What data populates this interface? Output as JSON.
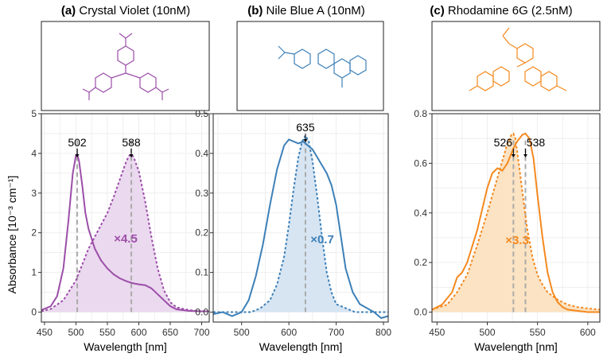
{
  "ylabel": "Absorbance [10⁻³ cm⁻¹]",
  "chart_data": [
    {
      "type": "line",
      "panel": "a",
      "title_bold": "(a)",
      "title_rest": "Crystal Violet (10nM)",
      "xlabel": "Wavelength [nm]",
      "xlim": [
        445,
        712
      ],
      "ylim": [
        -0.25,
        5
      ],
      "xticks": [
        "450",
        "500",
        "550",
        "600",
        "650",
        "700"
      ],
      "yticks": [
        "0",
        "1",
        "2",
        "3",
        "4",
        "5"
      ],
      "grid": true,
      "color": "#9b4ea8",
      "fill": "#ebd9ef",
      "peaks": [
        {
          "x": 502,
          "label": "502"
        },
        {
          "x": 588,
          "label": "588"
        }
      ],
      "multiplier": "×4.5",
      "series": [
        {
          "style": "solid",
          "x": [
            445,
            460,
            470,
            480,
            488,
            495,
            500,
            502,
            505,
            510,
            515,
            520,
            530,
            540,
            550,
            560,
            570,
            580,
            590,
            600,
            610,
            620,
            630,
            640,
            650,
            660,
            680,
            700,
            712
          ],
          "y": [
            0.05,
            0.15,
            0.4,
            1.1,
            2.3,
            3.5,
            3.95,
            3.98,
            3.8,
            3.2,
            2.5,
            2.1,
            1.6,
            1.3,
            1.1,
            0.95,
            0.85,
            0.78,
            0.73,
            0.7,
            0.68,
            0.6,
            0.45,
            0.3,
            0.15,
            0.07,
            0.03,
            0.02,
            0.02
          ]
        },
        {
          "style": "dashed",
          "x": [
            445,
            460,
            480,
            500,
            510,
            520,
            530,
            540,
            550,
            560,
            570,
            580,
            585,
            588,
            592,
            600,
            610,
            620,
            630,
            640,
            650,
            660,
            680,
            700,
            712
          ],
          "y": [
            0.02,
            0.08,
            0.3,
            0.8,
            1.2,
            1.6,
            1.9,
            2.2,
            2.5,
            2.9,
            3.35,
            3.8,
            3.95,
            3.98,
            3.9,
            3.55,
            2.8,
            1.9,
            1.1,
            0.55,
            0.25,
            0.12,
            0.05,
            0.02,
            0.02
          ]
        }
      ]
    },
    {
      "type": "line",
      "panel": "b",
      "title_bold": "(b)",
      "title_rest": "Nile Blue A (10nM)",
      "xlabel": "Wavelength [nm]",
      "xlim": [
        440,
        810
      ],
      "ylim": [
        -0.025,
        0.5
      ],
      "xticks": [
        "500",
        "600",
        "700",
        "800"
      ],
      "yticks": [
        "0.0",
        "0.1",
        "0.2",
        "0.3",
        "0.4",
        "0.5"
      ],
      "grid": true,
      "color": "#3d80b8",
      "fill": "#d7e5f3",
      "peaks": [
        {
          "x": 635,
          "label": "635"
        }
      ],
      "multiplier": "×0.7",
      "series": [
        {
          "style": "solid",
          "x": [
            440,
            460,
            480,
            500,
            515,
            530,
            545,
            560,
            575,
            590,
            600,
            610,
            620,
            630,
            640,
            650,
            660,
            670,
            680,
            690,
            700,
            710,
            720,
            735,
            750,
            765,
            780,
            795,
            810
          ],
          "y": [
            -0.005,
            0.0,
            -0.01,
            0.0,
            0.03,
            0.09,
            0.17,
            0.27,
            0.36,
            0.42,
            0.435,
            0.43,
            0.425,
            0.43,
            0.42,
            0.41,
            0.39,
            0.37,
            0.35,
            0.32,
            0.27,
            0.19,
            0.11,
            0.05,
            0.02,
            0.01,
            0.0,
            -0.015,
            -0.01
          ]
        },
        {
          "style": "dashed",
          "x": [
            440,
            480,
            520,
            540,
            560,
            575,
            590,
            600,
            610,
            620,
            628,
            635,
            642,
            650,
            660,
            670,
            680,
            690,
            700,
            720,
            740,
            760,
            780,
            810
          ],
          "y": [
            0.0,
            0.0,
            0.0,
            0.01,
            0.03,
            0.07,
            0.14,
            0.22,
            0.31,
            0.39,
            0.43,
            0.445,
            0.43,
            0.38,
            0.29,
            0.19,
            0.1,
            0.05,
            0.02,
            0.01,
            0.0,
            0.0,
            0.0,
            0.0
          ]
        }
      ]
    },
    {
      "type": "line",
      "panel": "c",
      "title_bold": "(c)",
      "title_rest": "Rhodamine 6G (2.5nM)",
      "xlabel": "Wavelength [nm]",
      "xlim": [
        445,
        612
      ],
      "ylim": [
        -0.04,
        0.8
      ],
      "xticks": [
        "450",
        "500",
        "550",
        "600"
      ],
      "yticks": [
        "0.0",
        "0.2",
        "0.4",
        "0.6",
        "0.8"
      ],
      "grid": true,
      "color": "#f4891f",
      "fill": "#fbe3c3",
      "peaks": [
        {
          "x": 526,
          "label": "526"
        },
        {
          "x": 538,
          "label": "538"
        }
      ],
      "multiplier": "×3.3",
      "series": [
        {
          "style": "solid",
          "x": [
            445,
            455,
            465,
            470,
            475,
            480,
            490,
            500,
            505,
            510,
            515,
            520,
            526,
            530,
            535,
            538,
            542,
            546,
            550,
            555,
            560,
            565,
            570,
            575,
            580,
            590,
            600,
            612
          ],
          "y": [
            0.01,
            0.03,
            0.08,
            0.14,
            0.16,
            0.2,
            0.33,
            0.5,
            0.56,
            0.58,
            0.57,
            0.6,
            0.66,
            0.69,
            0.715,
            0.72,
            0.7,
            0.62,
            0.47,
            0.3,
            0.16,
            0.08,
            0.04,
            0.02,
            0.01,
            0.005,
            0.0,
            0.0
          ]
        },
        {
          "style": "dashed",
          "x": [
            445,
            460,
            470,
            480,
            490,
            500,
            505,
            510,
            515,
            520,
            524,
            526,
            528,
            532,
            536,
            540,
            545,
            550,
            555,
            560,
            570,
            580,
            590,
            600,
            612
          ],
          "y": [
            0.01,
            0.03,
            0.08,
            0.15,
            0.27,
            0.4,
            0.47,
            0.54,
            0.61,
            0.68,
            0.715,
            0.72,
            0.7,
            0.58,
            0.45,
            0.33,
            0.22,
            0.15,
            0.11,
            0.08,
            0.05,
            0.03,
            0.02,
            0.015,
            0.01
          ]
        }
      ]
    }
  ]
}
